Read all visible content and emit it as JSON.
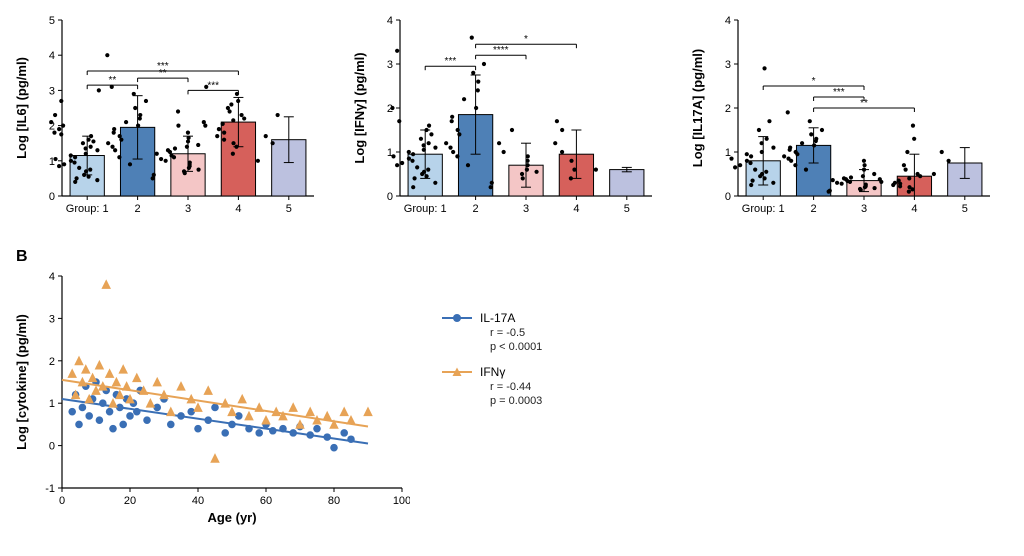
{
  "colors": {
    "groups": [
      "#b7d3ea",
      "#4e80b6",
      "#f4c6c6",
      "#d6605b",
      "#bcc1df"
    ],
    "scatter": {
      "il17a": "#3a6fb5",
      "ifng": "#e7a356"
    },
    "bg": "#ffffff"
  },
  "barcharts": [
    {
      "ylabel": "Log [IL6] (pg/ml)",
      "xlabel_prefix": "Group:",
      "ylim": [
        0,
        5
      ],
      "ytick_step": 1,
      "groups": [
        "1",
        "2",
        "3",
        "4",
        "5"
      ],
      "means": [
        1.15,
        1.95,
        1.2,
        2.1,
        1.6
      ],
      "sds": [
        0.55,
        0.9,
        0.5,
        0.7,
        0.65
      ],
      "points": [
        [
          0.4,
          0.45,
          0.5,
          0.55,
          0.6,
          0.7,
          0.75,
          0.8,
          0.85,
          0.9,
          0.95,
          1.0,
          1.05,
          1.1,
          1.15,
          1.2,
          1.3,
          1.35,
          1.4,
          1.5,
          1.55,
          1.6,
          1.7,
          1.75,
          1.8,
          1.9,
          2.0,
          2.1,
          2.3,
          2.7,
          3.0
        ],
        [
          0.9,
          1.1,
          1.3,
          1.4,
          1.5,
          1.6,
          1.7,
          1.8,
          1.9,
          2.0,
          2.1,
          2.2,
          2.3,
          2.5,
          2.7,
          2.9,
          3.1,
          4.0
        ],
        [
          0.5,
          0.6,
          0.65,
          0.7,
          0.75,
          0.8,
          0.85,
          0.9,
          0.95,
          1.0,
          1.05,
          1.1,
          1.15,
          1.2,
          1.25,
          1.3,
          1.35,
          1.4,
          1.45,
          1.55,
          1.65,
          1.8,
          2.0,
          2.4
        ],
        [
          1.2,
          1.4,
          1.5,
          1.6,
          1.7,
          1.8,
          1.9,
          2.0,
          2.05,
          2.1,
          2.15,
          2.2,
          2.3,
          2.4,
          2.5,
          2.6,
          2.7,
          2.9,
          3.1
        ],
        [
          1.0,
          1.5,
          1.7,
          2.3
        ]
      ],
      "sig": [
        {
          "a": 0,
          "b": 1,
          "y": 3.15,
          "label": "**"
        },
        {
          "a": 1,
          "b": 2,
          "y": 3.35,
          "label": "**"
        },
        {
          "a": 0,
          "b": 3,
          "y": 3.55,
          "label": "***"
        },
        {
          "a": 2,
          "b": 3,
          "y": 3.0,
          "label": "***"
        }
      ]
    },
    {
      "ylabel": "Log [IFNγ] (pg/ml)",
      "xlabel_prefix": "Group:",
      "ylim": [
        0,
        4
      ],
      "ytick_step": 1,
      "groups": [
        "1",
        "2",
        "3",
        "4",
        "5"
      ],
      "means": [
        0.95,
        1.85,
        0.7,
        0.95,
        0.6
      ],
      "sds": [
        0.55,
        0.9,
        0.5,
        0.55,
        0.05
      ],
      "points": [
        [
          0.2,
          0.3,
          0.4,
          0.45,
          0.5,
          0.55,
          0.6,
          0.65,
          0.7,
          0.75,
          0.8,
          0.85,
          0.9,
          0.95,
          1.0,
          1.05,
          1.1,
          1.15,
          1.2,
          1.3,
          1.4,
          1.5,
          1.6,
          1.7,
          2.0,
          3.3
        ],
        [
          0.7,
          0.9,
          1.0,
          1.1,
          1.2,
          1.4,
          1.5,
          1.7,
          1.8,
          2.0,
          2.2,
          2.4,
          2.6,
          2.8,
          3.0,
          3.6
        ],
        [
          0.2,
          0.3,
          0.4,
          0.5,
          0.55,
          0.6,
          0.7,
          0.8,
          0.9,
          1.0,
          1.2,
          1.5
        ],
        [
          0.4,
          0.6,
          0.8,
          1.0,
          1.2,
          1.5,
          1.7
        ],
        [
          0.6
        ]
      ],
      "sig": [
        {
          "a": 0,
          "b": 1,
          "y": 2.95,
          "label": "***"
        },
        {
          "a": 1,
          "b": 2,
          "y": 3.2,
          "label": "****"
        },
        {
          "a": 1,
          "b": 3,
          "y": 3.45,
          "label": "*"
        }
      ]
    },
    {
      "ylabel": "Log [IL17A] (pg/ml)",
      "xlabel_prefix": "Group:",
      "ylim": [
        0,
        4
      ],
      "ytick_step": 1,
      "groups": [
        "1",
        "2",
        "3",
        "4",
        "5"
      ],
      "means": [
        0.8,
        1.15,
        0.35,
        0.45,
        0.75
      ],
      "sds": [
        0.55,
        0.4,
        0.25,
        0.5,
        0.35
      ],
      "points": [
        [
          0.25,
          0.3,
          0.35,
          0.4,
          0.45,
          0.5,
          0.55,
          0.6,
          0.65,
          0.7,
          0.75,
          0.8,
          0.85,
          0.9,
          0.95,
          1.0,
          1.1,
          1.2,
          1.3,
          1.5,
          1.7,
          2.9
        ],
        [
          0.6,
          0.7,
          0.8,
          0.85,
          0.9,
          0.95,
          1.0,
          1.05,
          1.1,
          1.15,
          1.2,
          1.25,
          1.3,
          1.4,
          1.5,
          1.7,
          1.9
        ],
        [
          0.1,
          0.12,
          0.14,
          0.16,
          0.18,
          0.2,
          0.22,
          0.24,
          0.26,
          0.28,
          0.3,
          0.32,
          0.34,
          0.36,
          0.38,
          0.4,
          0.42,
          0.45,
          0.5,
          0.6,
          0.7,
          0.8
        ],
        [
          0.1,
          0.15,
          0.2,
          0.22,
          0.25,
          0.28,
          0.3,
          0.32,
          0.35,
          0.38,
          0.4,
          0.45,
          0.5,
          0.6,
          0.7,
          1.0,
          1.3,
          1.6
        ],
        [
          0.5,
          0.8,
          1.0
        ]
      ],
      "sig": [
        {
          "a": 0,
          "b": 2,
          "y": 2.5,
          "label": "*"
        },
        {
          "a": 1,
          "b": 2,
          "y": 2.25,
          "label": "***"
        },
        {
          "a": 1,
          "b": 3,
          "y": 2.0,
          "label": "**"
        }
      ]
    }
  ],
  "scatter": {
    "panel_label": "B",
    "xlabel": "Age (yr)",
    "ylabel": "Log [cytokine] (pg/ml)",
    "xlim": [
      0,
      100
    ],
    "xtick_step": 20,
    "ylim": [
      -1,
      4
    ],
    "ytick_step": 1,
    "series": [
      {
        "name": "IL-17A",
        "key": "il17a",
        "marker": "circle",
        "r_text": "r = -0.5",
        "p_text": "p < 0.0001",
        "line": {
          "x0": 0,
          "y0": 1.1,
          "x1": 90,
          "y1": 0.05
        },
        "points": [
          [
            3,
            0.8
          ],
          [
            4,
            1.2
          ],
          [
            5,
            0.5
          ],
          [
            6,
            0.9
          ],
          [
            7,
            1.4
          ],
          [
            8,
            0.7
          ],
          [
            9,
            1.1
          ],
          [
            10,
            1.5
          ],
          [
            11,
            0.6
          ],
          [
            12,
            1.0
          ],
          [
            13,
            1.3
          ],
          [
            14,
            0.8
          ],
          [
            15,
            0.4
          ],
          [
            16,
            1.2
          ],
          [
            17,
            0.9
          ],
          [
            18,
            0.5
          ],
          [
            19,
            1.1
          ],
          [
            20,
            0.7
          ],
          [
            21,
            1.0
          ],
          [
            22,
            0.8
          ],
          [
            23,
            1.3
          ],
          [
            25,
            0.6
          ],
          [
            28,
            0.9
          ],
          [
            30,
            1.1
          ],
          [
            32,
            0.5
          ],
          [
            35,
            0.7
          ],
          [
            38,
            0.8
          ],
          [
            40,
            0.4
          ],
          [
            43,
            0.6
          ],
          [
            45,
            0.9
          ],
          [
            48,
            0.3
          ],
          [
            50,
            0.5
          ],
          [
            52,
            0.7
          ],
          [
            55,
            0.4
          ],
          [
            58,
            0.3
          ],
          [
            60,
            0.5
          ],
          [
            62,
            0.35
          ],
          [
            65,
            0.4
          ],
          [
            68,
            0.3
          ],
          [
            70,
            0.45
          ],
          [
            73,
            0.25
          ],
          [
            75,
            0.4
          ],
          [
            78,
            0.2
          ],
          [
            80,
            -0.05
          ],
          [
            83,
            0.3
          ],
          [
            85,
            0.15
          ]
        ]
      },
      {
        "name": "IFNγ",
        "key": "ifng",
        "marker": "triangle",
        "r_text": "r = -0.44",
        "p_text": "p = 0.0003",
        "line": {
          "x0": 0,
          "y0": 1.55,
          "x1": 90,
          "y1": 0.45
        },
        "points": [
          [
            3,
            1.7
          ],
          [
            4,
            1.2
          ],
          [
            5,
            2.0
          ],
          [
            6,
            1.5
          ],
          [
            7,
            1.8
          ],
          [
            8,
            1.1
          ],
          [
            9,
            1.6
          ],
          [
            10,
            1.3
          ],
          [
            11,
            1.9
          ],
          [
            12,
            1.4
          ],
          [
            13,
            3.8
          ],
          [
            14,
            1.7
          ],
          [
            15,
            1.0
          ],
          [
            16,
            1.5
          ],
          [
            17,
            1.2
          ],
          [
            18,
            1.8
          ],
          [
            19,
            1.4
          ],
          [
            20,
            1.1
          ],
          [
            22,
            1.6
          ],
          [
            24,
            1.3
          ],
          [
            26,
            1.0
          ],
          [
            28,
            1.5
          ],
          [
            30,
            1.2
          ],
          [
            32,
            0.8
          ],
          [
            35,
            1.4
          ],
          [
            38,
            1.1
          ],
          [
            40,
            0.9
          ],
          [
            43,
            1.3
          ],
          [
            45,
            -0.3
          ],
          [
            48,
            1.0
          ],
          [
            50,
            0.8
          ],
          [
            53,
            1.1
          ],
          [
            55,
            0.7
          ],
          [
            58,
            0.9
          ],
          [
            60,
            0.6
          ],
          [
            63,
            0.8
          ],
          [
            65,
            0.7
          ],
          [
            68,
            0.9
          ],
          [
            70,
            0.5
          ],
          [
            73,
            0.8
          ],
          [
            75,
            0.6
          ],
          [
            78,
            0.7
          ],
          [
            80,
            0.5
          ],
          [
            83,
            0.8
          ],
          [
            85,
            0.6
          ],
          [
            90,
            0.8
          ]
        ]
      }
    ]
  },
  "labels": {
    "legend_dash": "—"
  }
}
